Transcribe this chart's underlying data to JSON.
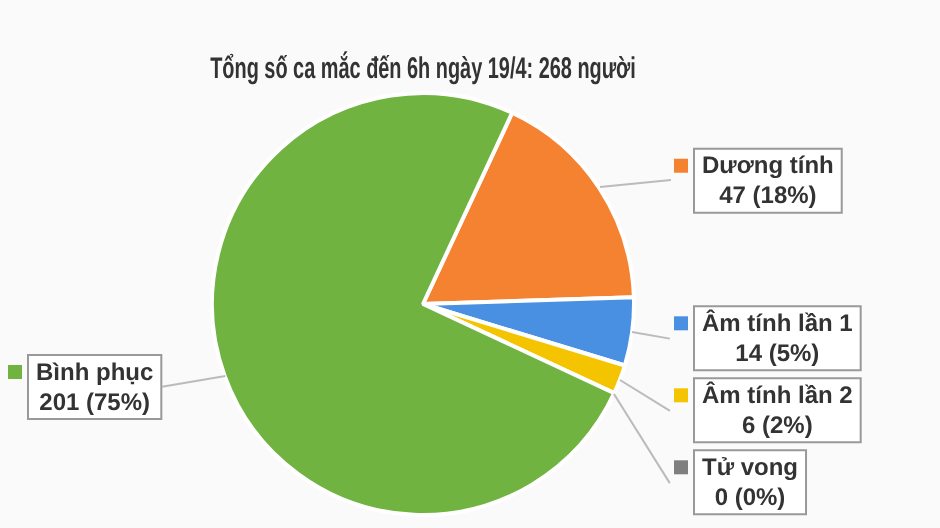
{
  "chart_data": {
    "type": "pie",
    "title": "Tổng số ca mắc đến 6h ngày 19/4: 268 người",
    "categories": [
      "Dương tính",
      "Âm tính lần 1",
      "Âm tính lần 2",
      "Tử vong",
      "Bình phục"
    ],
    "values": [
      47,
      14,
      6,
      0,
      201
    ],
    "colors": [
      "#f58231",
      "#4a90e2",
      "#f5c400",
      "#7f7f7f",
      "#70b340"
    ],
    "value_labels": [
      "47 (18%)",
      "14 (5%)",
      "6 (2%)",
      "0 (0%)",
      "201 (75%)"
    ],
    "legend": "right"
  }
}
